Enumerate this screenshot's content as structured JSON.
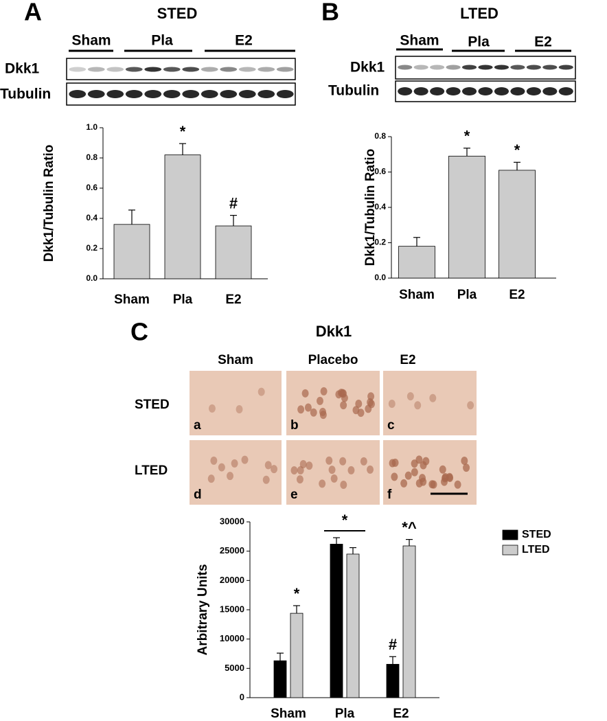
{
  "figure": {
    "panel_a_letter": "A",
    "panel_b_letter": "B",
    "panel_c_letter": "C",
    "blot_a": {
      "groups": [
        "Sham",
        "Pla",
        "E2"
      ],
      "rows": [
        "Dkk1",
        "Tubulin"
      ]
    },
    "blot_b": {
      "groups": [
        "Sham",
        "Pla",
        "E2"
      ],
      "rows": [
        "Dkk1",
        "Tubulin"
      ]
    },
    "panel_c_title": "Dkk1",
    "micrographs": {
      "columns": [
        "Sham",
        "Placebo",
        "E2"
      ],
      "rows": [
        "STED",
        "LTED"
      ],
      "letters": [
        "a",
        "b",
        "c",
        "d",
        "e",
        "f"
      ]
    }
  },
  "chart_data": [
    {
      "type": "bar",
      "title": "STED",
      "y_label": "Dkk1/Tubulin Ratio",
      "categories": [
        "Sham",
        "Pla",
        "E2"
      ],
      "values": [
        0.36,
        0.82,
        0.35
      ],
      "errors": [
        0.095,
        0.075,
        0.07
      ],
      "annotations": [
        null,
        "*",
        "#"
      ],
      "color": "#cccccc",
      "ylim": [
        0,
        1.0
      ],
      "yticks": [
        {
          "value": 0,
          "label": "0.0"
        },
        {
          "value": 0.2,
          "label": "0.2"
        },
        {
          "value": 0.4,
          "label": "0.4"
        },
        {
          "value": 0.6,
          "label": "0.6"
        },
        {
          "value": 0.8,
          "label": "0.8"
        },
        {
          "value": 1.0,
          "label": "1.0"
        }
      ]
    },
    {
      "type": "bar",
      "title": "LTED",
      "y_label": "Dkk1/Tubulin Ratio",
      "categories": [
        "Sham",
        "Pla",
        "E2"
      ],
      "values": [
        0.18,
        0.69,
        0.61
      ],
      "errors": [
        0.05,
        0.045,
        0.045
      ],
      "annotations": [
        null,
        "*",
        "*"
      ],
      "color": "#cccccc",
      "ylim": [
        0,
        0.8
      ],
      "yticks": [
        {
          "value": 0,
          "label": "0.0"
        },
        {
          "value": 0.2,
          "label": "0.2"
        },
        {
          "value": 0.4,
          "label": "0.4"
        },
        {
          "value": 0.6,
          "label": "0.6"
        },
        {
          "value": 0.8,
          "label": "0.8"
        }
      ]
    },
    {
      "type": "grouped_bar",
      "y_label": "Arbitrary Units",
      "categories": [
        "Sham",
        "Pla",
        "E2"
      ],
      "series": [
        {
          "name": "STED",
          "color": "#000000",
          "values": [
            6300,
            26200,
            5700
          ],
          "errors": [
            1300,
            1100,
            1300
          ],
          "annotations": [
            null,
            null,
            "#"
          ]
        },
        {
          "name": "LTED",
          "color": "#cccccc",
          "values": [
            14400,
            24500,
            25900
          ],
          "errors": [
            1300,
            1100,
            1100
          ],
          "annotations": [
            "*",
            null,
            "*^"
          ]
        }
      ],
      "group_annotations": [
        null,
        "*",
        null
      ],
      "legend": "upper right",
      "ylim": [
        0,
        30000
      ],
      "yticks": [
        0,
        5000,
        10000,
        15000,
        20000,
        25000,
        30000
      ]
    }
  ]
}
